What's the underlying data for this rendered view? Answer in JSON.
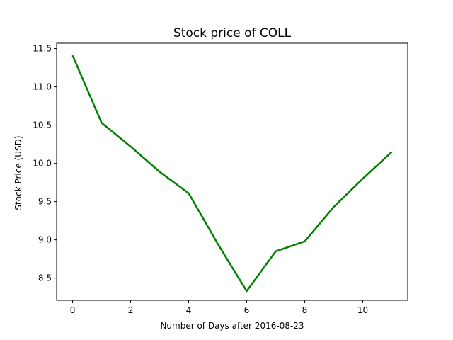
{
  "chart_data": {
    "type": "line",
    "title": "Stock price of COLL",
    "xlabel": "Number of Days after 2016-08-23",
    "ylabel": "Stock Price (USD)",
    "xlim": [
      -0.55,
      11.55
    ],
    "ylim": [
      8.21,
      11.57
    ],
    "x_ticks": [
      0,
      2,
      4,
      6,
      8,
      10
    ],
    "x_tick_labels": [
      "0",
      "2",
      "4",
      "6",
      "8",
      "10"
    ],
    "y_ticks": [
      8.5,
      9.0,
      9.5,
      10.0,
      10.5,
      11.0,
      11.5
    ],
    "y_tick_labels": [
      "8.5",
      "9.0",
      "9.5",
      "10.0",
      "10.5",
      "11.0",
      "11.5"
    ],
    "grid": false,
    "legend": "none",
    "series": [
      {
        "color": "#008000",
        "x": [
          0,
          1,
          2,
          3,
          4,
          5,
          6,
          7,
          8,
          9,
          10,
          11
        ],
        "y": [
          11.41,
          10.53,
          10.22,
          9.89,
          9.61,
          8.95,
          8.33,
          8.85,
          8.98,
          9.43,
          9.8,
          10.15
        ]
      }
    ]
  }
}
